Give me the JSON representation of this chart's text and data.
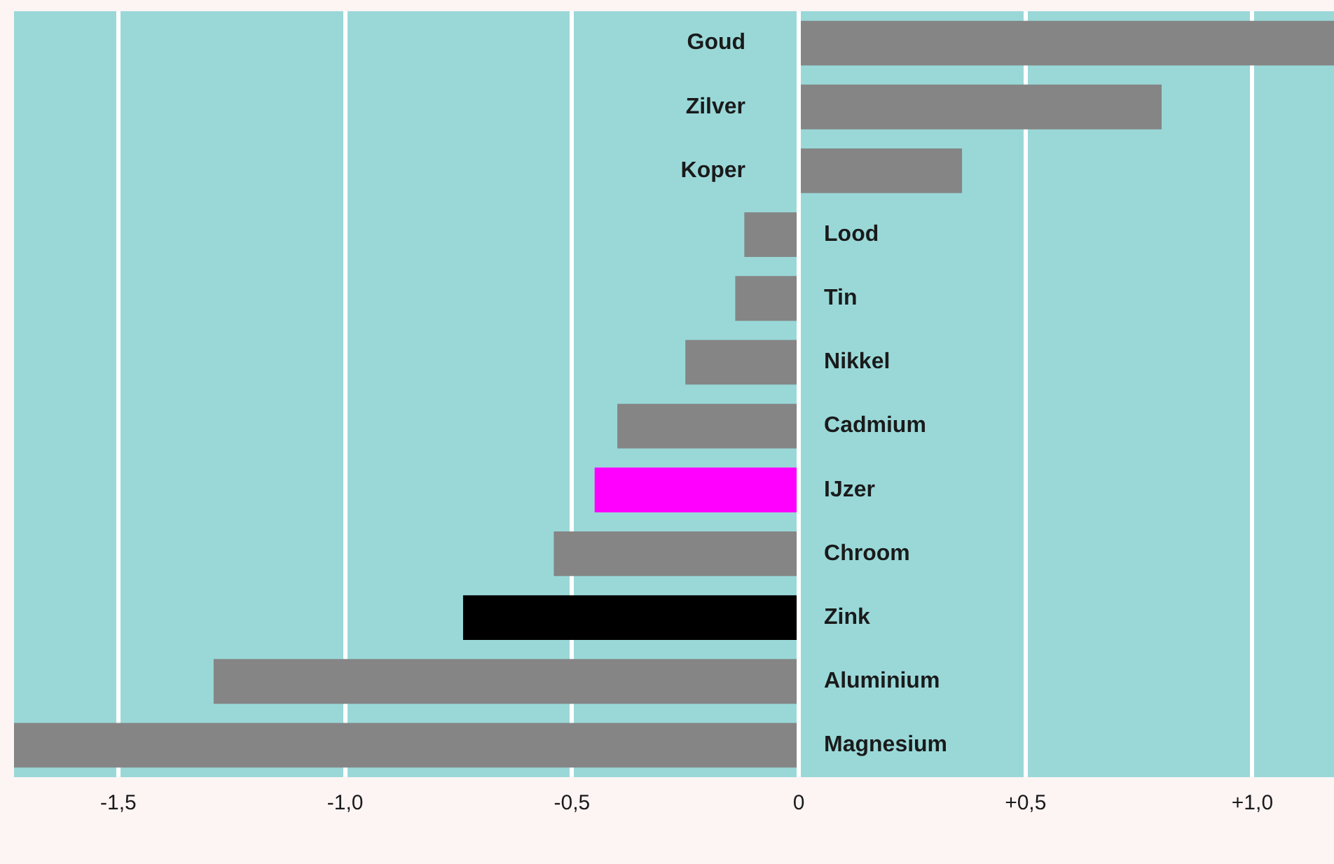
{
  "chart_data": {
    "type": "bar",
    "orientation": "horizontal",
    "categories": [
      "Goud",
      "Zilver",
      "Koper",
      "Lood",
      "Tin",
      "Nikkel",
      "Cadmium",
      "IJzer",
      "Chroom",
      "Zink",
      "Aluminium",
      "Magnesium"
    ],
    "values": [
      1.18,
      0.8,
      0.36,
      -0.12,
      -0.14,
      -0.25,
      -0.4,
      -0.45,
      -0.54,
      -0.74,
      -1.29,
      -1.73
    ],
    "colors": [
      "#858585",
      "#858585",
      "#858585",
      "#858585",
      "#858585",
      "#858585",
      "#858585",
      "#ff00ff",
      "#858585",
      "#000000",
      "#858585",
      "#858585"
    ],
    "xlim": [
      -1.73,
      1.18
    ],
    "xticks": [
      {
        "value": -1.5,
        "label": "-1,5"
      },
      {
        "value": -1,
        "label": "-1,0"
      },
      {
        "value": -0.5,
        "label": "-0,5"
      },
      0,
      {
        "value": 0.5,
        "label": "+0,5"
      },
      {
        "value": 1,
        "label": "+1,0"
      }
    ],
    "grid": "x"
  }
}
